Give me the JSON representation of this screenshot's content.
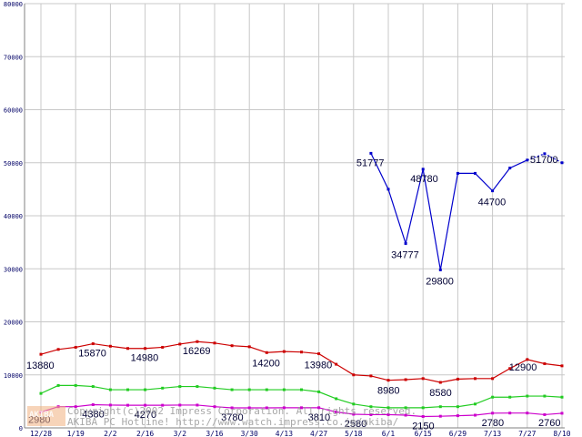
{
  "chart_data": {
    "type": "line",
    "title": "",
    "xlabel": "",
    "ylabel": "",
    "ylim": [
      0,
      80000
    ],
    "y_ticks": [
      "0",
      "10000",
      "20000",
      "30000",
      "40000",
      "50000",
      "60000",
      "70000",
      "80000"
    ],
    "x_tick_labels": [
      "12/28",
      "1/19",
      "2/2",
      "2/16",
      "3/2",
      "3/16",
      "3/30",
      "4/13",
      "4/27",
      "5/18",
      "6/1",
      "6/15",
      "6/29",
      "7/13",
      "7/27",
      "8/10"
    ],
    "grid": true,
    "colors": {
      "red": "#cc0000",
      "green": "#22cc22",
      "magenta": "#cc00cc",
      "blue": "#0000cc",
      "grid": "#c8c8c8",
      "axis": "#808080"
    },
    "series": [
      {
        "color": "red",
        "x": [
          0,
          0.5,
          1,
          1.5,
          2,
          2.5,
          3,
          3.5,
          4,
          4.5,
          5,
          5.5,
          6,
          6.5,
          7,
          7.5,
          8,
          8.5,
          9,
          9.5,
          10,
          10.5,
          11,
          11.5,
          12,
          12.5,
          13,
          13.5,
          14,
          14.5,
          15
        ],
        "values": [
          13880,
          14800,
          15200,
          15870,
          15400,
          14980,
          14980,
          15200,
          15800,
          16269,
          16000,
          15500,
          15300,
          14200,
          14400,
          14300,
          13980,
          12000,
          10000,
          9800,
          8980,
          9100,
          9300,
          8580,
          9200,
          9300,
          9300,
          11200,
          12900,
          12100,
          11700
        ]
      },
      {
        "color": "green",
        "x": [
          0,
          0.5,
          1,
          1.5,
          2,
          2.5,
          3,
          3.5,
          4,
          4.5,
          5,
          5.5,
          6,
          6.5,
          7,
          7.5,
          8,
          8.5,
          9,
          9.5,
          10,
          10.5,
          11,
          11.5,
          12,
          12.5,
          13,
          13.5,
          14,
          14.5,
          15
        ],
        "values": [
          6500,
          8000,
          8000,
          7800,
          7200,
          7200,
          7200,
          7500,
          7800,
          7800,
          7500,
          7200,
          7200,
          7200,
          7200,
          7200,
          6800,
          5500,
          4500,
          4000,
          3800,
          3800,
          3800,
          4000,
          4000,
          4500,
          5800,
          5800,
          6000,
          6000,
          5800
        ]
      },
      {
        "color": "magenta",
        "x": [
          0,
          0.5,
          1,
          1.5,
          2,
          2.5,
          3,
          3.5,
          4,
          4.5,
          5,
          5.5,
          6,
          6.5,
          7,
          7.5,
          8,
          8.5,
          9,
          9.5,
          10,
          10.5,
          11,
          11.5,
          12,
          12.5,
          13,
          13.5,
          14,
          14.5,
          15
        ],
        "values": [
          2980,
          4000,
          4000,
          4380,
          4300,
          4270,
          4270,
          4270,
          4300,
          4300,
          4000,
          3780,
          3780,
          3780,
          3800,
          3800,
          3810,
          3000,
          2580,
          2500,
          2500,
          2400,
          2150,
          2200,
          2300,
          2400,
          2780,
          2800,
          2800,
          2500,
          2760
        ]
      },
      {
        "color": "blue",
        "x": [
          9.5,
          10,
          10.5,
          11,
          11.5,
          12,
          12.5,
          13,
          13.5,
          14,
          14.5,
          15
        ],
        "values": [
          51777,
          45000,
          34777,
          48780,
          29800,
          48000,
          48000,
          44700,
          49000,
          50500,
          51700,
          50000
        ],
        "dashed_from_index": 9
      }
    ],
    "data_labels": [
      {
        "text": "13880",
        "x": 0,
        "value": 13880,
        "dx": -16,
        "dy": 16
      },
      {
        "text": "15870",
        "x": 1.5,
        "value": 15870,
        "dx": -16,
        "dy": 14
      },
      {
        "text": "14980",
        "x": 3,
        "value": 14980,
        "dx": -16,
        "dy": 14
      },
      {
        "text": "16269",
        "x": 4.5,
        "value": 16269,
        "dx": -16,
        "dy": 14
      },
      {
        "text": "14200",
        "x": 6.5,
        "value": 14200,
        "dx": -16,
        "dy": 15
      },
      {
        "text": "13980",
        "x": 8,
        "value": 13980,
        "dx": -16,
        "dy": 16
      },
      {
        "text": "8980",
        "x": 10,
        "value": 8980,
        "dx": -12,
        "dy": 15
      },
      {
        "text": "8580",
        "x": 11.5,
        "value": 8580,
        "dx": -12,
        "dy": 15
      },
      {
        "text": "12900",
        "x": 14,
        "value": 12900,
        "dx": -20,
        "dy": 12
      },
      {
        "text": "2980",
        "x": 0,
        "value": 2980,
        "dx": -14,
        "dy": 12
      },
      {
        "text": "4380",
        "x": 1.5,
        "value": 4380,
        "dx": -12,
        "dy": 14
      },
      {
        "text": "4270",
        "x": 3,
        "value": 4270,
        "dx": -12,
        "dy": 14
      },
      {
        "text": "3780",
        "x": 5.5,
        "value": 3780,
        "dx": -12,
        "dy": 14
      },
      {
        "text": "3810",
        "x": 8,
        "value": 3810,
        "dx": -12,
        "dy": 14
      },
      {
        "text": "2580",
        "x": 9,
        "value": 2580,
        "dx": -10,
        "dy": 14
      },
      {
        "text": "2150",
        "x": 11,
        "value": 2150,
        "dx": -12,
        "dy": 14
      },
      {
        "text": "2780",
        "x": 13,
        "value": 2780,
        "dx": -12,
        "dy": 14
      },
      {
        "text": "2760",
        "x": 15,
        "value": 2760,
        "dx": -26,
        "dy": 14
      },
      {
        "text": "51777",
        "x": 9.5,
        "value": 51777,
        "dx": -16,
        "dy": 14
      },
      {
        "text": "34777",
        "x": 10.5,
        "value": 34777,
        "dx": -16,
        "dy": 16
      },
      {
        "text": "48780",
        "x": 11,
        "value": 48780,
        "dx": -14,
        "dy": 14
      },
      {
        "text": "29800",
        "x": 11.5,
        "value": 29800,
        "dx": -16,
        "dy": 16
      },
      {
        "text": "44700",
        "x": 13,
        "value": 44700,
        "dx": -16,
        "dy": 16
      },
      {
        "text": "51700",
        "x": 14.5,
        "value": 51700,
        "dx": -16,
        "dy": 10
      }
    ],
    "watermark": [
      "Copyright(c)2002 Impress Corporation. All rights reserved.",
      "AKIBA PC Hotline!  http://www.watch.impress.co.jp/akiba/"
    ],
    "logo_text": "AKIBA"
  }
}
